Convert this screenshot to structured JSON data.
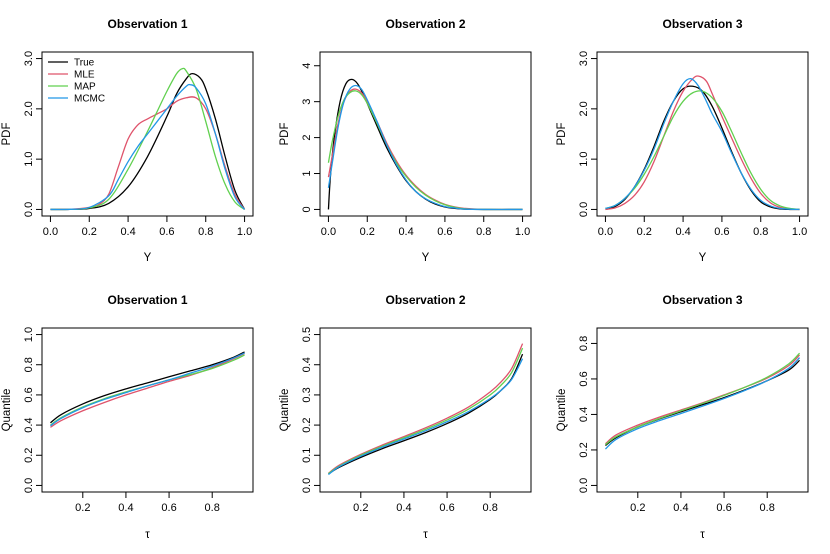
{
  "colors": {
    "True": "#000000",
    "MLE": "#DF536B",
    "MAP": "#61D04F",
    "MCMC": "#2297E6",
    "axis": "#000000"
  },
  "legend": {
    "position": "top-left",
    "panel": 0,
    "entries": [
      "True",
      "MLE",
      "MAP",
      "MCMC"
    ]
  },
  "chart_data": [
    {
      "type": "line",
      "title": "Observation 1",
      "xlabel": "Y",
      "ylabel": "PDF",
      "xlim": [
        0,
        1
      ],
      "ylim": [
        0,
        3.0
      ],
      "xticks": [
        0,
        0.2,
        0.4,
        0.6,
        0.8,
        1
      ],
      "xtick_labels": [
        "0.0",
        "0.2",
        "0.4",
        "0.6",
        "0.8",
        "1.0"
      ],
      "yticks": [
        0,
        1,
        2,
        3
      ],
      "ytick_labels": [
        "0.0",
        "1.0",
        "2.0",
        "3.0"
      ],
      "series": [
        {
          "name": "True",
          "x": [
            0,
            0.1,
            0.2,
            0.3,
            0.4,
            0.5,
            0.6,
            0.65,
            0.7,
            0.73,
            0.77,
            0.8,
            0.85,
            0.9,
            0.95,
            1.0
          ],
          "y": [
            0,
            0.002,
            0.02,
            0.12,
            0.45,
            1.05,
            1.85,
            2.3,
            2.6,
            2.7,
            2.62,
            2.4,
            1.8,
            1.05,
            0.38,
            0
          ]
        },
        {
          "name": "MLE",
          "x": [
            0,
            0.1,
            0.2,
            0.25,
            0.3,
            0.35,
            0.4,
            0.45,
            0.5,
            0.55,
            0.6,
            0.65,
            0.7,
            0.75,
            0.8,
            0.85,
            0.9,
            0.95,
            1.0
          ],
          "y": [
            0,
            0.003,
            0.04,
            0.1,
            0.3,
            0.85,
            1.4,
            1.68,
            1.8,
            1.9,
            2.0,
            2.15,
            2.22,
            2.22,
            2.0,
            1.5,
            0.85,
            0.3,
            0
          ]
        },
        {
          "name": "MAP",
          "x": [
            0,
            0.1,
            0.2,
            0.3,
            0.4,
            0.5,
            0.55,
            0.6,
            0.65,
            0.68,
            0.7,
            0.75,
            0.8,
            0.85,
            0.9,
            0.95,
            1.0
          ],
          "y": [
            0,
            0.002,
            0.03,
            0.2,
            0.8,
            1.55,
            1.95,
            2.35,
            2.7,
            2.8,
            2.75,
            2.4,
            1.75,
            1.05,
            0.5,
            0.15,
            0
          ]
        },
        {
          "name": "MCMC",
          "x": [
            0,
            0.1,
            0.2,
            0.3,
            0.35,
            0.4,
            0.45,
            0.5,
            0.55,
            0.6,
            0.65,
            0.7,
            0.72,
            0.75,
            0.8,
            0.85,
            0.9,
            0.95,
            1.0
          ],
          "y": [
            0,
            0.003,
            0.04,
            0.27,
            0.6,
            0.95,
            1.25,
            1.5,
            1.75,
            2.0,
            2.25,
            2.45,
            2.48,
            2.42,
            2.1,
            1.5,
            0.8,
            0.25,
            0
          ]
        }
      ]
    },
    {
      "type": "line",
      "title": "Observation 2",
      "xlabel": "Y",
      "ylabel": "PDF",
      "xlim": [
        0,
        1
      ],
      "ylim": [
        0,
        4.2
      ],
      "xticks": [
        0,
        0.2,
        0.4,
        0.6,
        0.8,
        1
      ],
      "xtick_labels": [
        "0.0",
        "0.2",
        "0.4",
        "0.6",
        "0.8",
        "1.0"
      ],
      "yticks": [
        0,
        1,
        2,
        3,
        4
      ],
      "ytick_labels": [
        "0",
        "1",
        "2",
        "3",
        "4"
      ],
      "series": [
        {
          "name": "True",
          "x": [
            0,
            0.01,
            0.03,
            0.06,
            0.09,
            0.12,
            0.15,
            0.18,
            0.22,
            0.26,
            0.3,
            0.35,
            0.4,
            0.45,
            0.5,
            0.55,
            0.6,
            0.65,
            0.7,
            0.8,
            1.0
          ],
          "y": [
            0,
            0.9,
            2.0,
            3.0,
            3.5,
            3.62,
            3.5,
            3.2,
            2.7,
            2.2,
            1.72,
            1.22,
            0.8,
            0.5,
            0.29,
            0.15,
            0.07,
            0.03,
            0.01,
            0,
            0
          ]
        },
        {
          "name": "MLE",
          "x": [
            0,
            0.02,
            0.05,
            0.08,
            0.11,
            0.14,
            0.17,
            0.2,
            0.25,
            0.3,
            0.35,
            0.4,
            0.45,
            0.5,
            0.55,
            0.6,
            0.65,
            0.7,
            0.8,
            1.0
          ],
          "y": [
            0.9,
            1.5,
            2.4,
            3.0,
            3.28,
            3.35,
            3.25,
            3.0,
            2.45,
            1.85,
            1.35,
            0.95,
            0.65,
            0.42,
            0.26,
            0.14,
            0.07,
            0.03,
            0,
            0
          ]
        },
        {
          "name": "MAP",
          "x": [
            0,
            0.02,
            0.05,
            0.08,
            0.11,
            0.14,
            0.17,
            0.2,
            0.25,
            0.3,
            0.35,
            0.4,
            0.45,
            0.5,
            0.55,
            0.6,
            0.65,
            0.7,
            0.8,
            1.0
          ],
          "y": [
            1.3,
            1.9,
            2.6,
            3.05,
            3.25,
            3.3,
            3.2,
            2.95,
            2.4,
            1.8,
            1.3,
            0.92,
            0.62,
            0.4,
            0.24,
            0.13,
            0.06,
            0.02,
            0,
            0
          ]
        },
        {
          "name": "MCMC",
          "x": [
            0,
            0.02,
            0.05,
            0.08,
            0.11,
            0.14,
            0.17,
            0.2,
            0.25,
            0.3,
            0.35,
            0.4,
            0.45,
            0.5,
            0.55,
            0.6,
            0.65,
            0.7,
            0.8,
            1.0
          ],
          "y": [
            0.6,
            1.3,
            2.3,
            3.0,
            3.35,
            3.45,
            3.35,
            3.05,
            2.45,
            1.8,
            1.25,
            0.82,
            0.5,
            0.3,
            0.17,
            0.08,
            0.04,
            0.01,
            0,
            0
          ]
        }
      ]
    },
    {
      "type": "line",
      "title": "Observation 3",
      "xlabel": "Y",
      "ylabel": "PDF",
      "xlim": [
        0,
        1
      ],
      "ylim": [
        0,
        3.0
      ],
      "xticks": [
        0,
        0.2,
        0.4,
        0.6,
        0.8,
        1
      ],
      "xtick_labels": [
        "0.0",
        "0.2",
        "0.4",
        "0.6",
        "0.8",
        "1.0"
      ],
      "yticks": [
        0,
        1,
        2,
        3
      ],
      "ytick_labels": [
        "0.0",
        "1.0",
        "2.0",
        "3.0"
      ],
      "series": [
        {
          "name": "True",
          "x": [
            0,
            0.05,
            0.1,
            0.15,
            0.2,
            0.25,
            0.3,
            0.35,
            0.4,
            0.45,
            0.5,
            0.55,
            0.6,
            0.65,
            0.7,
            0.75,
            0.8,
            0.85,
            0.9,
            0.95,
            1.0
          ],
          "y": [
            0,
            0.06,
            0.2,
            0.45,
            0.8,
            1.25,
            1.75,
            2.15,
            2.4,
            2.45,
            2.35,
            2.05,
            1.62,
            1.15,
            0.72,
            0.38,
            0.15,
            0.05,
            0.01,
            0,
            0
          ]
        },
        {
          "name": "MLE",
          "x": [
            0,
            0.05,
            0.1,
            0.15,
            0.2,
            0.25,
            0.3,
            0.35,
            0.4,
            0.45,
            0.48,
            0.52,
            0.55,
            0.6,
            0.65,
            0.7,
            0.75,
            0.8,
            0.85,
            0.9,
            0.95,
            1.0
          ],
          "y": [
            0,
            0.03,
            0.12,
            0.28,
            0.55,
            0.95,
            1.45,
            1.95,
            2.35,
            2.6,
            2.65,
            2.55,
            2.3,
            1.85,
            1.42,
            1.0,
            0.62,
            0.32,
            0.13,
            0.04,
            0.01,
            0
          ]
        },
        {
          "name": "MAP",
          "x": [
            0,
            0.05,
            0.1,
            0.15,
            0.2,
            0.25,
            0.3,
            0.35,
            0.4,
            0.45,
            0.5,
            0.55,
            0.6,
            0.65,
            0.7,
            0.75,
            0.8,
            0.85,
            0.9,
            0.95,
            1.0
          ],
          "y": [
            0.02,
            0.08,
            0.22,
            0.42,
            0.7,
            1.05,
            1.45,
            1.85,
            2.15,
            2.32,
            2.35,
            2.22,
            1.95,
            1.55,
            1.12,
            0.72,
            0.4,
            0.18,
            0.07,
            0.02,
            0
          ]
        },
        {
          "name": "MCMC",
          "x": [
            0,
            0.05,
            0.1,
            0.15,
            0.2,
            0.25,
            0.3,
            0.35,
            0.4,
            0.44,
            0.48,
            0.52,
            0.55,
            0.6,
            0.65,
            0.7,
            0.75,
            0.8,
            0.85,
            0.9,
            0.95,
            1.0
          ],
          "y": [
            0.02,
            0.08,
            0.22,
            0.45,
            0.78,
            1.2,
            1.7,
            2.15,
            2.5,
            2.6,
            2.45,
            2.15,
            1.9,
            1.55,
            1.12,
            0.72,
            0.4,
            0.18,
            0.07,
            0.02,
            0.005,
            0
          ]
        }
      ]
    },
    {
      "type": "line",
      "title": "Observation 1",
      "xlabel": "τ",
      "ylabel": "Quantile",
      "xlim": [
        0.05,
        0.95
      ],
      "ylim": [
        0,
        1.0
      ],
      "xticks": [
        0.2,
        0.4,
        0.6,
        0.8
      ],
      "xtick_labels": [
        "0.2",
        "0.4",
        "0.6",
        "0.8"
      ],
      "yticks": [
        0,
        0.2,
        0.4,
        0.6,
        0.8,
        1.0
      ],
      "ytick_labels": [
        "0.0",
        "0.2",
        "0.4",
        "0.6",
        "0.8",
        "1.0"
      ],
      "series": [
        {
          "name": "True",
          "x": [
            0.05,
            0.1,
            0.2,
            0.3,
            0.4,
            0.5,
            0.6,
            0.7,
            0.8,
            0.9,
            0.95
          ],
          "y": [
            0.415,
            0.47,
            0.54,
            0.595,
            0.64,
            0.68,
            0.72,
            0.76,
            0.8,
            0.85,
            0.885
          ]
        },
        {
          "name": "MLE",
          "x": [
            0.05,
            0.1,
            0.2,
            0.3,
            0.4,
            0.5,
            0.6,
            0.7,
            0.8,
            0.9,
            0.95
          ],
          "y": [
            0.385,
            0.43,
            0.495,
            0.55,
            0.6,
            0.645,
            0.69,
            0.73,
            0.78,
            0.84,
            0.875
          ]
        },
        {
          "name": "MAP",
          "x": [
            0.05,
            0.1,
            0.2,
            0.3,
            0.4,
            0.5,
            0.6,
            0.7,
            0.8,
            0.9,
            0.95
          ],
          "y": [
            0.4,
            0.45,
            0.52,
            0.575,
            0.62,
            0.66,
            0.7,
            0.735,
            0.775,
            0.83,
            0.865
          ]
        },
        {
          "name": "MCMC",
          "x": [
            0.05,
            0.1,
            0.2,
            0.3,
            0.4,
            0.5,
            0.6,
            0.7,
            0.8,
            0.9,
            0.95
          ],
          "y": [
            0.395,
            0.445,
            0.515,
            0.57,
            0.615,
            0.66,
            0.7,
            0.745,
            0.79,
            0.845,
            0.878
          ]
        }
      ]
    },
    {
      "type": "line",
      "title": "Observation 2",
      "xlabel": "τ",
      "ylabel": "Quantile",
      "xlim": [
        0.05,
        0.95
      ],
      "ylim": [
        0,
        0.5
      ],
      "xticks": [
        0.2,
        0.4,
        0.6,
        0.8
      ],
      "xtick_labels": [
        "0.2",
        "0.4",
        "0.6",
        "0.8"
      ],
      "yticks": [
        0,
        0.1,
        0.2,
        0.3,
        0.4,
        0.5
      ],
      "ytick_labels": [
        "0.0",
        "0.1",
        "0.2",
        "0.3",
        "0.4",
        "0.5"
      ],
      "series": [
        {
          "name": "True",
          "x": [
            0.05,
            0.1,
            0.2,
            0.3,
            0.4,
            0.5,
            0.6,
            0.7,
            0.8,
            0.85,
            0.9,
            0.95
          ],
          "y": [
            0.038,
            0.06,
            0.093,
            0.122,
            0.148,
            0.175,
            0.205,
            0.24,
            0.285,
            0.315,
            0.355,
            0.435
          ]
        },
        {
          "name": "MLE",
          "x": [
            0.05,
            0.1,
            0.2,
            0.3,
            0.4,
            0.5,
            0.6,
            0.7,
            0.8,
            0.85,
            0.9,
            0.95
          ],
          "y": [
            0.04,
            0.067,
            0.103,
            0.134,
            0.162,
            0.191,
            0.223,
            0.26,
            0.31,
            0.343,
            0.388,
            0.47
          ]
        },
        {
          "name": "MAP",
          "x": [
            0.05,
            0.1,
            0.2,
            0.3,
            0.4,
            0.5,
            0.6,
            0.7,
            0.8,
            0.85,
            0.9,
            0.95
          ],
          "y": [
            0.039,
            0.064,
            0.1,
            0.13,
            0.158,
            0.186,
            0.217,
            0.253,
            0.3,
            0.332,
            0.375,
            0.455
          ]
        },
        {
          "name": "MCMC",
          "x": [
            0.05,
            0.1,
            0.2,
            0.3,
            0.4,
            0.5,
            0.6,
            0.7,
            0.8,
            0.85,
            0.9,
            0.95
          ],
          "y": [
            0.036,
            0.062,
            0.097,
            0.127,
            0.154,
            0.181,
            0.211,
            0.245,
            0.288,
            0.315,
            0.352,
            0.42
          ]
        }
      ]
    },
    {
      "type": "line",
      "title": "Observation 3",
      "xlabel": "τ",
      "ylabel": "Quantile",
      "xlim": [
        0.05,
        0.95
      ],
      "ylim": [
        0,
        0.85
      ],
      "xticks": [
        0.2,
        0.4,
        0.6,
        0.8
      ],
      "xtick_labels": [
        "0.2",
        "0.4",
        "0.6",
        "0.8"
      ],
      "yticks": [
        0,
        0.2,
        0.4,
        0.6,
        0.8
      ],
      "ytick_labels": [
        "0.0",
        "0.2",
        "0.4",
        "0.6",
        "0.8"
      ],
      "series": [
        {
          "name": "True",
          "x": [
            0.05,
            0.1,
            0.2,
            0.3,
            0.4,
            0.5,
            0.6,
            0.7,
            0.8,
            0.9,
            0.95
          ],
          "y": [
            0.225,
            0.27,
            0.33,
            0.375,
            0.415,
            0.455,
            0.495,
            0.54,
            0.59,
            0.65,
            0.705
          ]
        },
        {
          "name": "MLE",
          "x": [
            0.05,
            0.1,
            0.2,
            0.3,
            0.4,
            0.5,
            0.6,
            0.7,
            0.8,
            0.9,
            0.95
          ],
          "y": [
            0.235,
            0.285,
            0.34,
            0.385,
            0.425,
            0.465,
            0.51,
            0.555,
            0.605,
            0.675,
            0.735
          ]
        },
        {
          "name": "MAP",
          "x": [
            0.05,
            0.1,
            0.2,
            0.3,
            0.4,
            0.5,
            0.6,
            0.7,
            0.8,
            0.9,
            0.95
          ],
          "y": [
            0.23,
            0.275,
            0.33,
            0.377,
            0.42,
            0.462,
            0.507,
            0.555,
            0.61,
            0.685,
            0.745
          ]
        },
        {
          "name": "MCMC",
          "x": [
            0.05,
            0.1,
            0.2,
            0.3,
            0.4,
            0.5,
            0.6,
            0.7,
            0.8,
            0.9,
            0.95
          ],
          "y": [
            0.205,
            0.26,
            0.32,
            0.365,
            0.405,
            0.447,
            0.49,
            0.537,
            0.59,
            0.66,
            0.72
          ]
        }
      ]
    }
  ]
}
